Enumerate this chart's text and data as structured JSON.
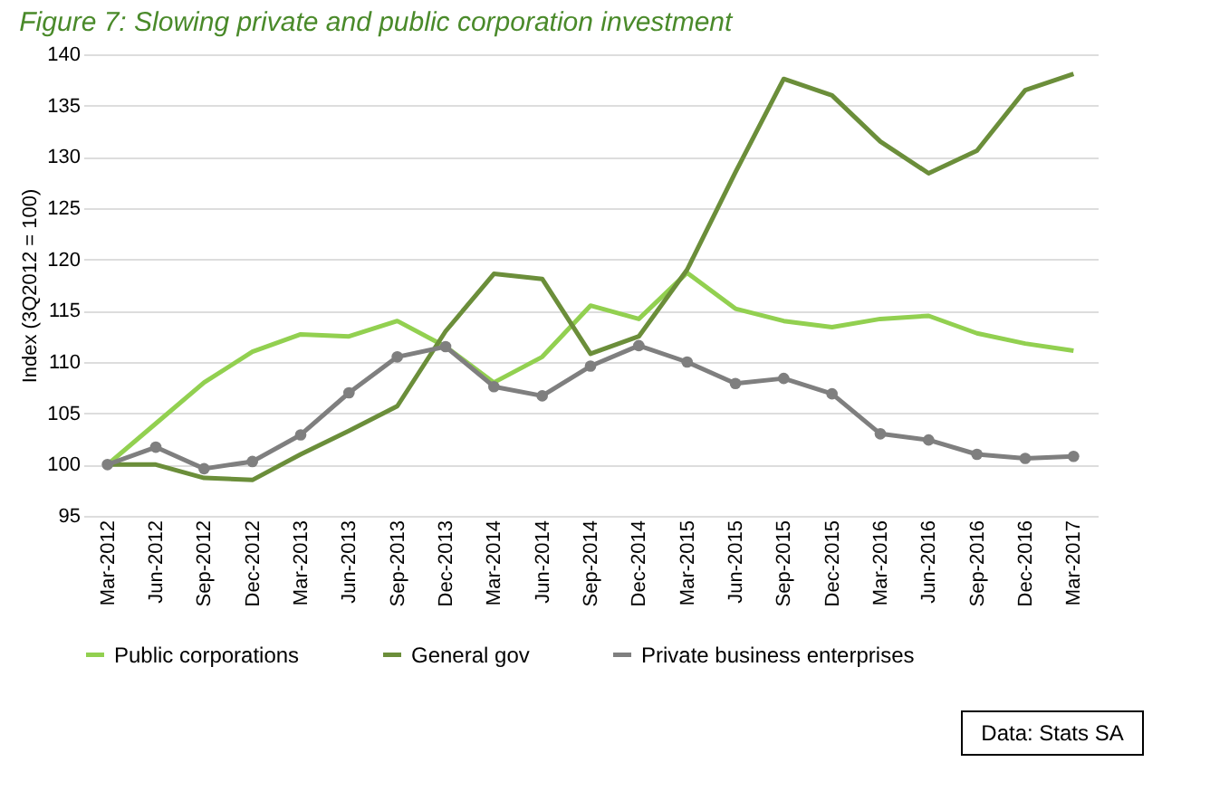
{
  "chart_data": {
    "type": "line",
    "title": "Figure 7: Slowing private and public corporation investment",
    "ylabel": "Index (3Q2012 = 100)",
    "categories": [
      "Mar-2012",
      "Jun-2012",
      "Sep-2012",
      "Dec-2012",
      "Mar-2013",
      "Jun-2013",
      "Sep-2013",
      "Dec-2013",
      "Mar-2014",
      "Jun-2014",
      "Sep-2014",
      "Dec-2014",
      "Mar-2015",
      "Jun-2015",
      "Sep-2015",
      "Dec-2015",
      "Mar-2016",
      "Jun-2016",
      "Sep-2016",
      "Dec-2016",
      "Mar-2017"
    ],
    "series": [
      {
        "name": "Public corporations",
        "color": "#92d050",
        "marker": "none",
        "values": [
          100,
          104,
          108,
          111,
          112.7,
          112.5,
          114,
          111.5,
          108,
          110.5,
          115.5,
          114.2,
          118.7,
          115.2,
          114,
          113.4,
          114.2,
          114.5,
          112.8,
          111.8,
          111.1
        ]
      },
      {
        "name": "General gov",
        "color": "#6b8e3a",
        "marker": "none",
        "values": [
          100,
          100,
          98.7,
          98.5,
          101,
          103.3,
          105.7,
          113,
          118.6,
          118.1,
          110.8,
          112.5,
          119,
          128.5,
          137.6,
          136,
          131.5,
          128.4,
          130.6,
          136.5,
          138.1
        ]
      },
      {
        "name": "Private business enterprises",
        "color": "#7f7f7f",
        "marker": "circle",
        "values": [
          100,
          101.7,
          99.6,
          100.3,
          102.9,
          107,
          110.5,
          111.5,
          107.6,
          106.7,
          109.6,
          111.6,
          110,
          107.9,
          108.4,
          106.9,
          103,
          102.4,
          101,
          100.6,
          100.8
        ]
      }
    ],
    "ylim": [
      95,
      140
    ],
    "yticks": [
      95,
      100,
      105,
      110,
      115,
      120,
      125,
      130,
      135,
      140
    ],
    "grid": "y",
    "legend": "bottom",
    "line_style": "solid",
    "annotations": [
      "Data: Stats SA"
    ]
  }
}
